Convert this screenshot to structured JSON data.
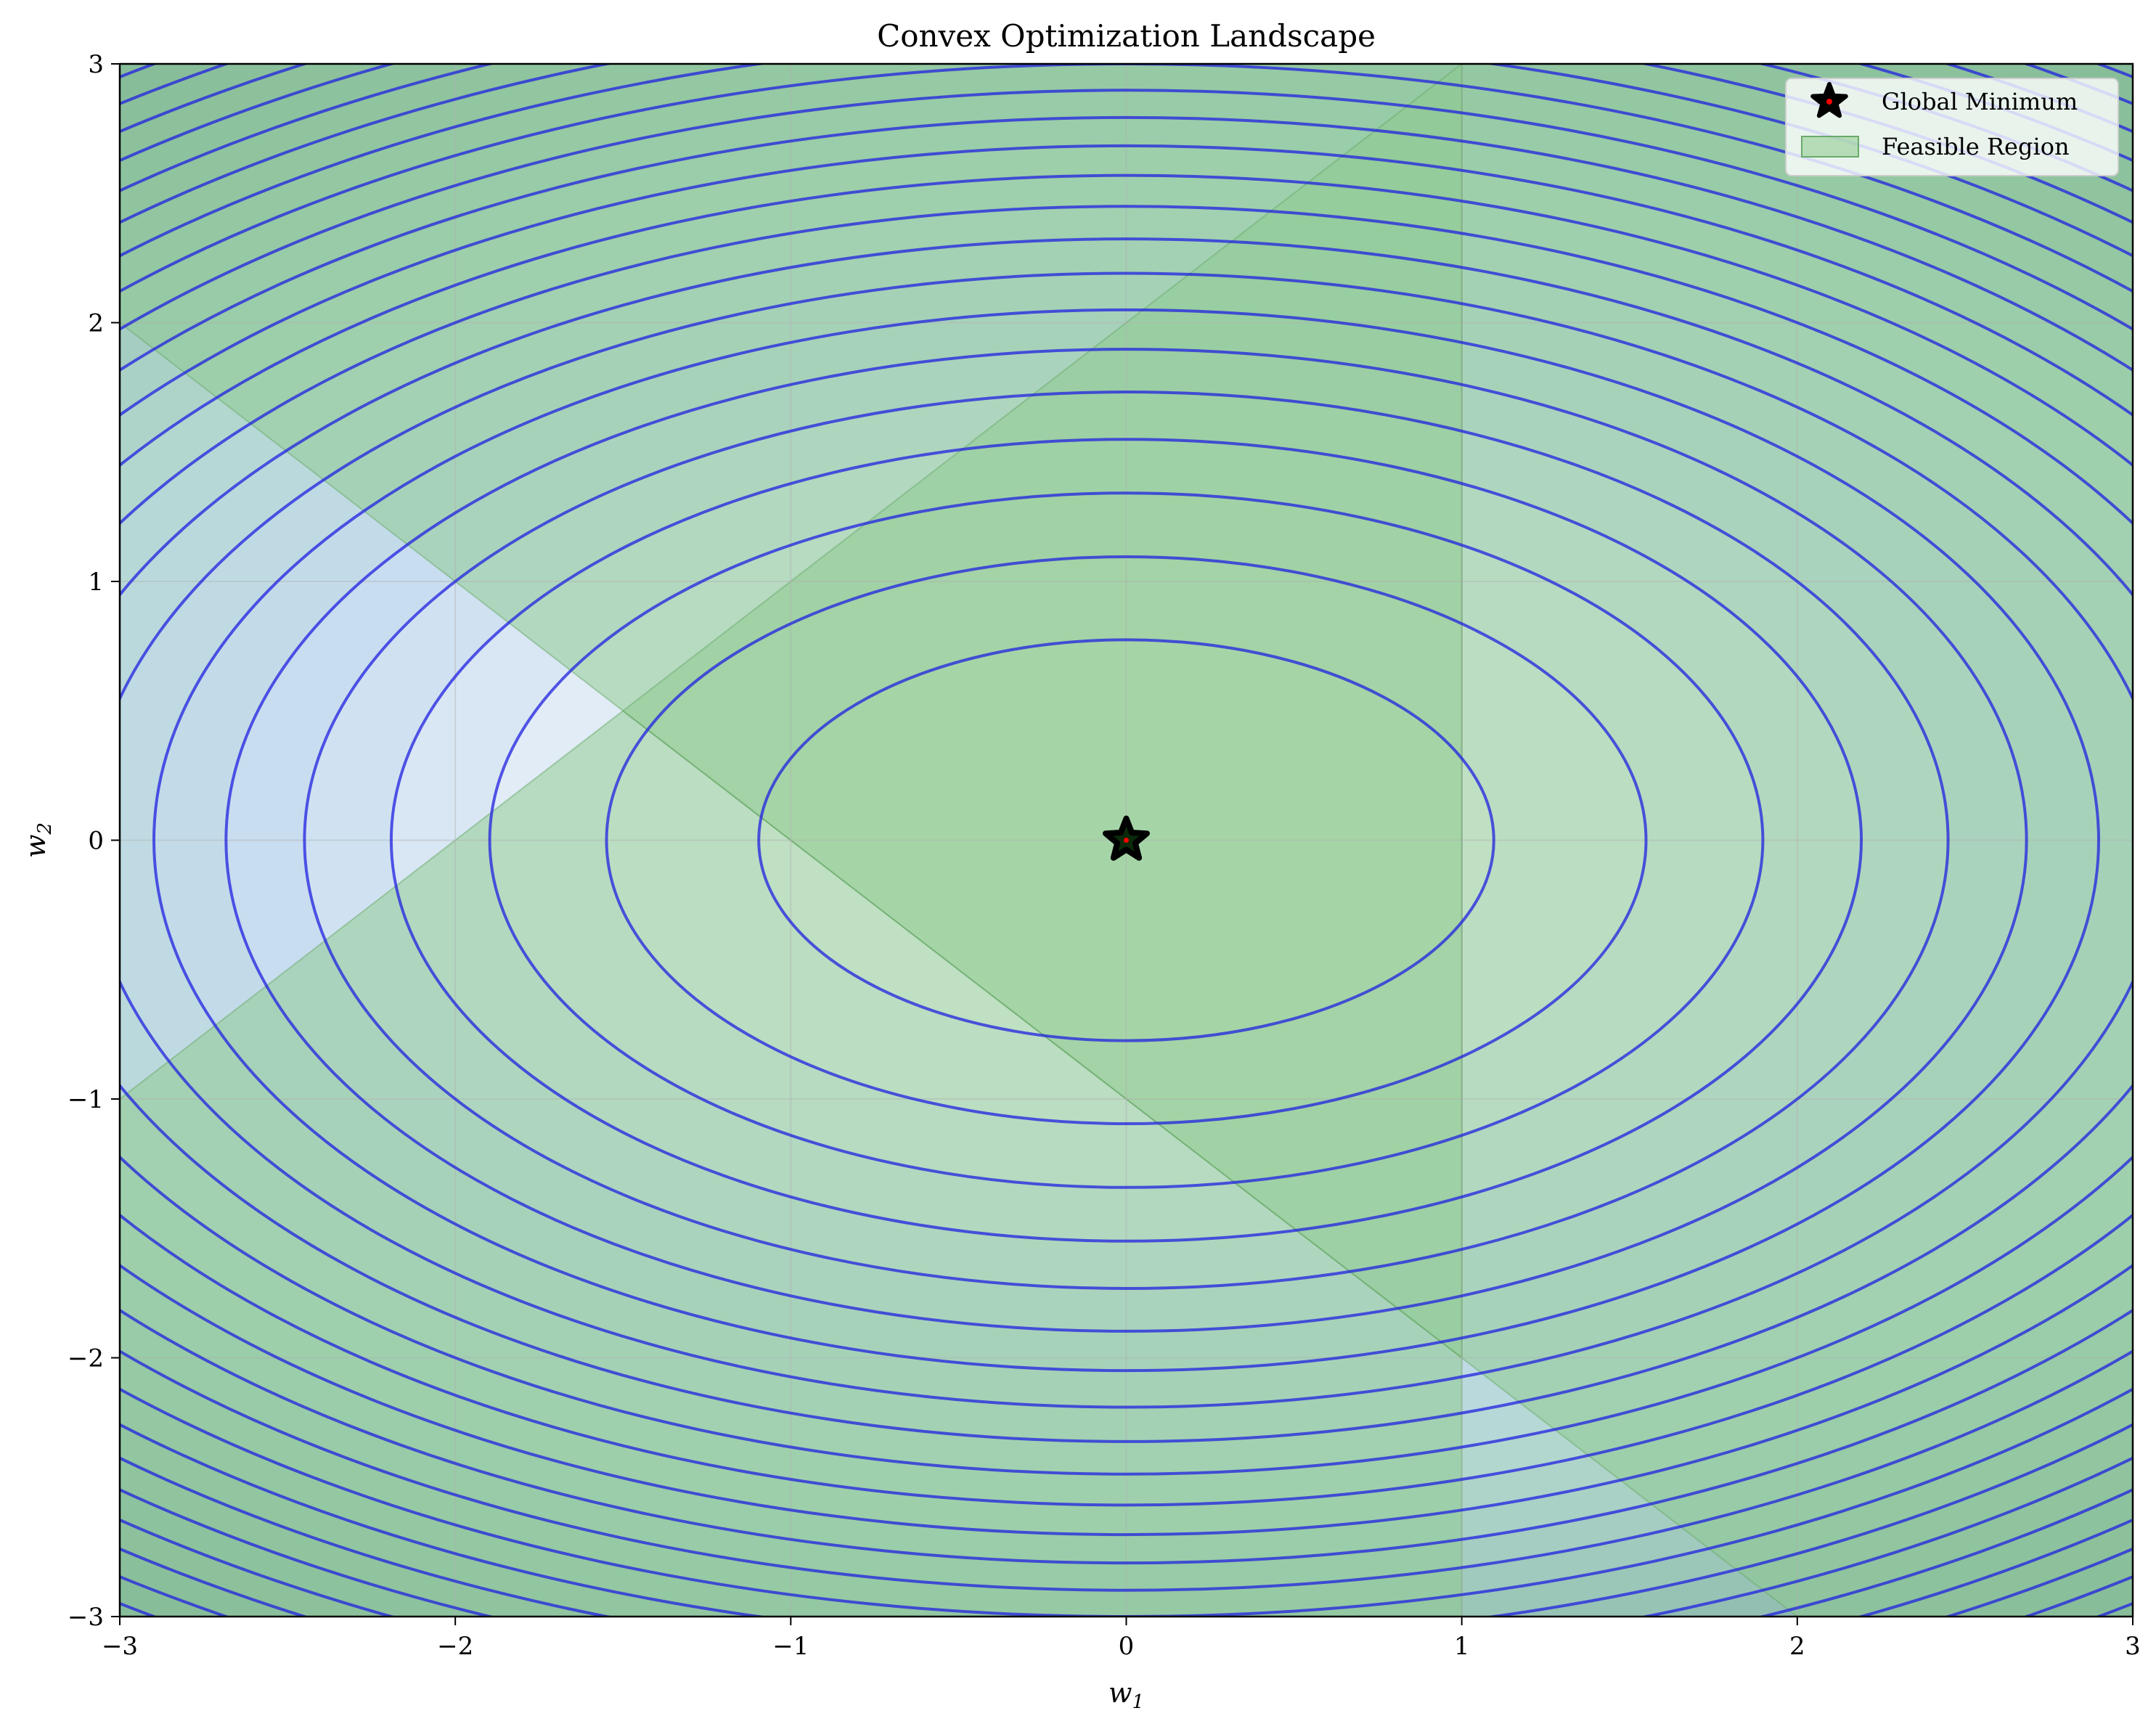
{
  "chart_data": {
    "type": "contour",
    "title": "Convex Optimization Landscape",
    "xlabel": "w",
    "xlabel_sub": "1",
    "ylabel": "w",
    "ylabel_sub": "2",
    "xlim": [
      -3,
      3
    ],
    "ylim": [
      -3,
      3
    ],
    "x_ticks": [
      -3,
      -2,
      -1,
      0,
      1,
      2,
      3
    ],
    "y_ticks": [
      -3,
      -2,
      -1,
      0,
      1,
      2,
      3
    ],
    "x_tick_labels": [
      "−3",
      "−2",
      "−1",
      "0",
      "1",
      "2",
      "3"
    ],
    "y_tick_labels": [
      "−3",
      "−2",
      "−1",
      "0",
      "1",
      "2",
      "3"
    ],
    "grid": true,
    "legend_position": "top-right",
    "function_form": "w1^2 + 2*w2^2",
    "contour_levels": [
      1.2,
      2.4,
      3.6,
      4.8,
      6.0,
      7.2,
      8.4,
      9.6,
      10.8,
      12.0,
      13.2,
      14.4,
      15.6,
      16.8,
      18.0,
      19.2,
      20.4,
      21.6,
      22.8,
      24.0,
      25.2,
      26.4
    ],
    "colors": {
      "contour_line": "#2020e0",
      "fill_low": "#f2f6fb",
      "fill_high": "#84b0a8",
      "feasible_region": "#8cc98c",
      "marker": "#000000",
      "marker_center": "#ff0000"
    },
    "feasible_region": {
      "name": "Feasible Region",
      "constraints": [
        "w1 - w2 <= 1... approximated",
        "w1 <= 1",
        "w1 + w2 >= -1"
      ],
      "polygons": [
        {
          "label": "band-upper",
          "points": [
            [
              -3,
              2
            ],
            [
              -3,
              3
            ],
            [
              1,
              3
            ],
            [
              1,
              -2
            ],
            [
              -1.5,
              0.5
            ]
          ]
        },
        {
          "label": "band-lower",
          "points": [
            [
              -3,
              -1
            ],
            [
              -3,
              -3
            ],
            [
              1,
              -3
            ],
            [
              1,
              -2
            ],
            [
              -1.5,
              0.5
            ]
          ]
        },
        {
          "label": "band-right",
          "points": [
            [
              1,
              -2
            ],
            [
              2,
              -3
            ],
            [
              3,
              -3
            ],
            [
              3,
              3
            ],
            [
              1,
              3
            ]
          ]
        },
        {
          "label": "core",
          "points": [
            [
              -1.5,
              0.5
            ],
            [
              1,
              3
            ],
            [
              1,
              -2
            ]
          ]
        }
      ]
    },
    "markers": [
      {
        "name": "Global Minimum",
        "x": 0,
        "y": 0,
        "shape": "star"
      }
    ],
    "legend": [
      {
        "name": "Global Minimum",
        "kind": "star"
      },
      {
        "name": "Feasible Region",
        "kind": "patch"
      }
    ]
  }
}
